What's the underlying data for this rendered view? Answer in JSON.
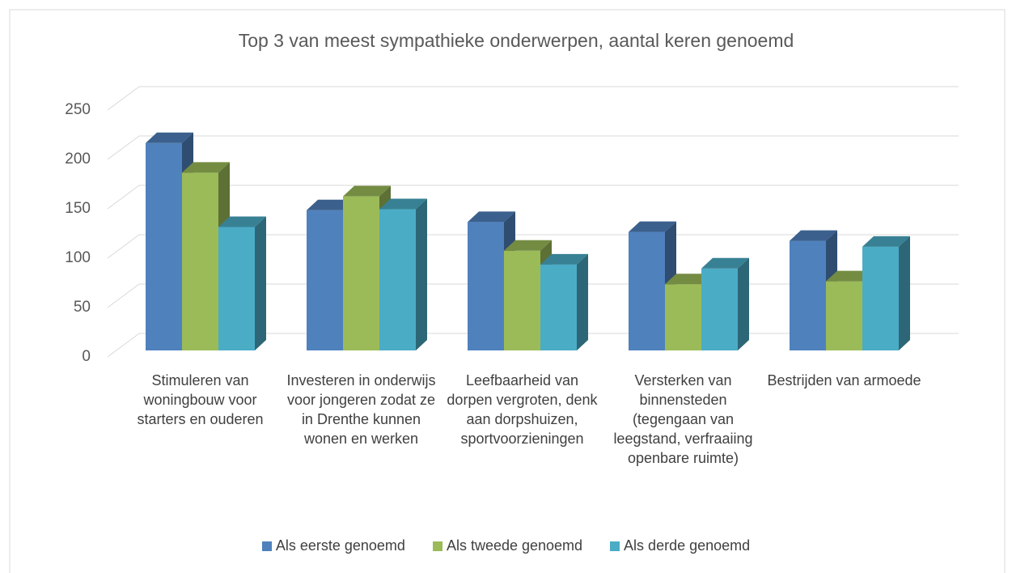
{
  "chart_data": {
    "type": "bar3d",
    "title": "Top 3 van meest sympathieke onderwerpen, aantal keren genoemd",
    "categories": [
      "Stimuleren van woningbouw voor starters en ouderen",
      "Investeren in onderwijs voor jongeren zodat ze in Drenthe kunnen wonen en werken",
      "Leefbaarheid van dorpen vergroten, denk aan dorpshuizen, sportvoorzieningen",
      "Versterken van binnensteden (tegengaan van leegstand, verfraaiing openbare ruimte)",
      "Bestrijden van armoede"
    ],
    "series": [
      {
        "name": "Als eerste genoemd",
        "color": "#4f81bd",
        "values": [
          210,
          142,
          130,
          120,
          111
        ]
      },
      {
        "name": "Als tweede genoemd",
        "color": "#9bbb59",
        "values": [
          180,
          156,
          101,
          67,
          70
        ]
      },
      {
        "name": "Als derde genoemd",
        "color": "#4bacc6",
        "values": [
          125,
          143,
          87,
          83,
          105
        ]
      }
    ],
    "ylim": [
      0,
      250
    ],
    "yticks": [
      0,
      50,
      100,
      150,
      200,
      250
    ],
    "grid": true,
    "legend": "bottom"
  }
}
